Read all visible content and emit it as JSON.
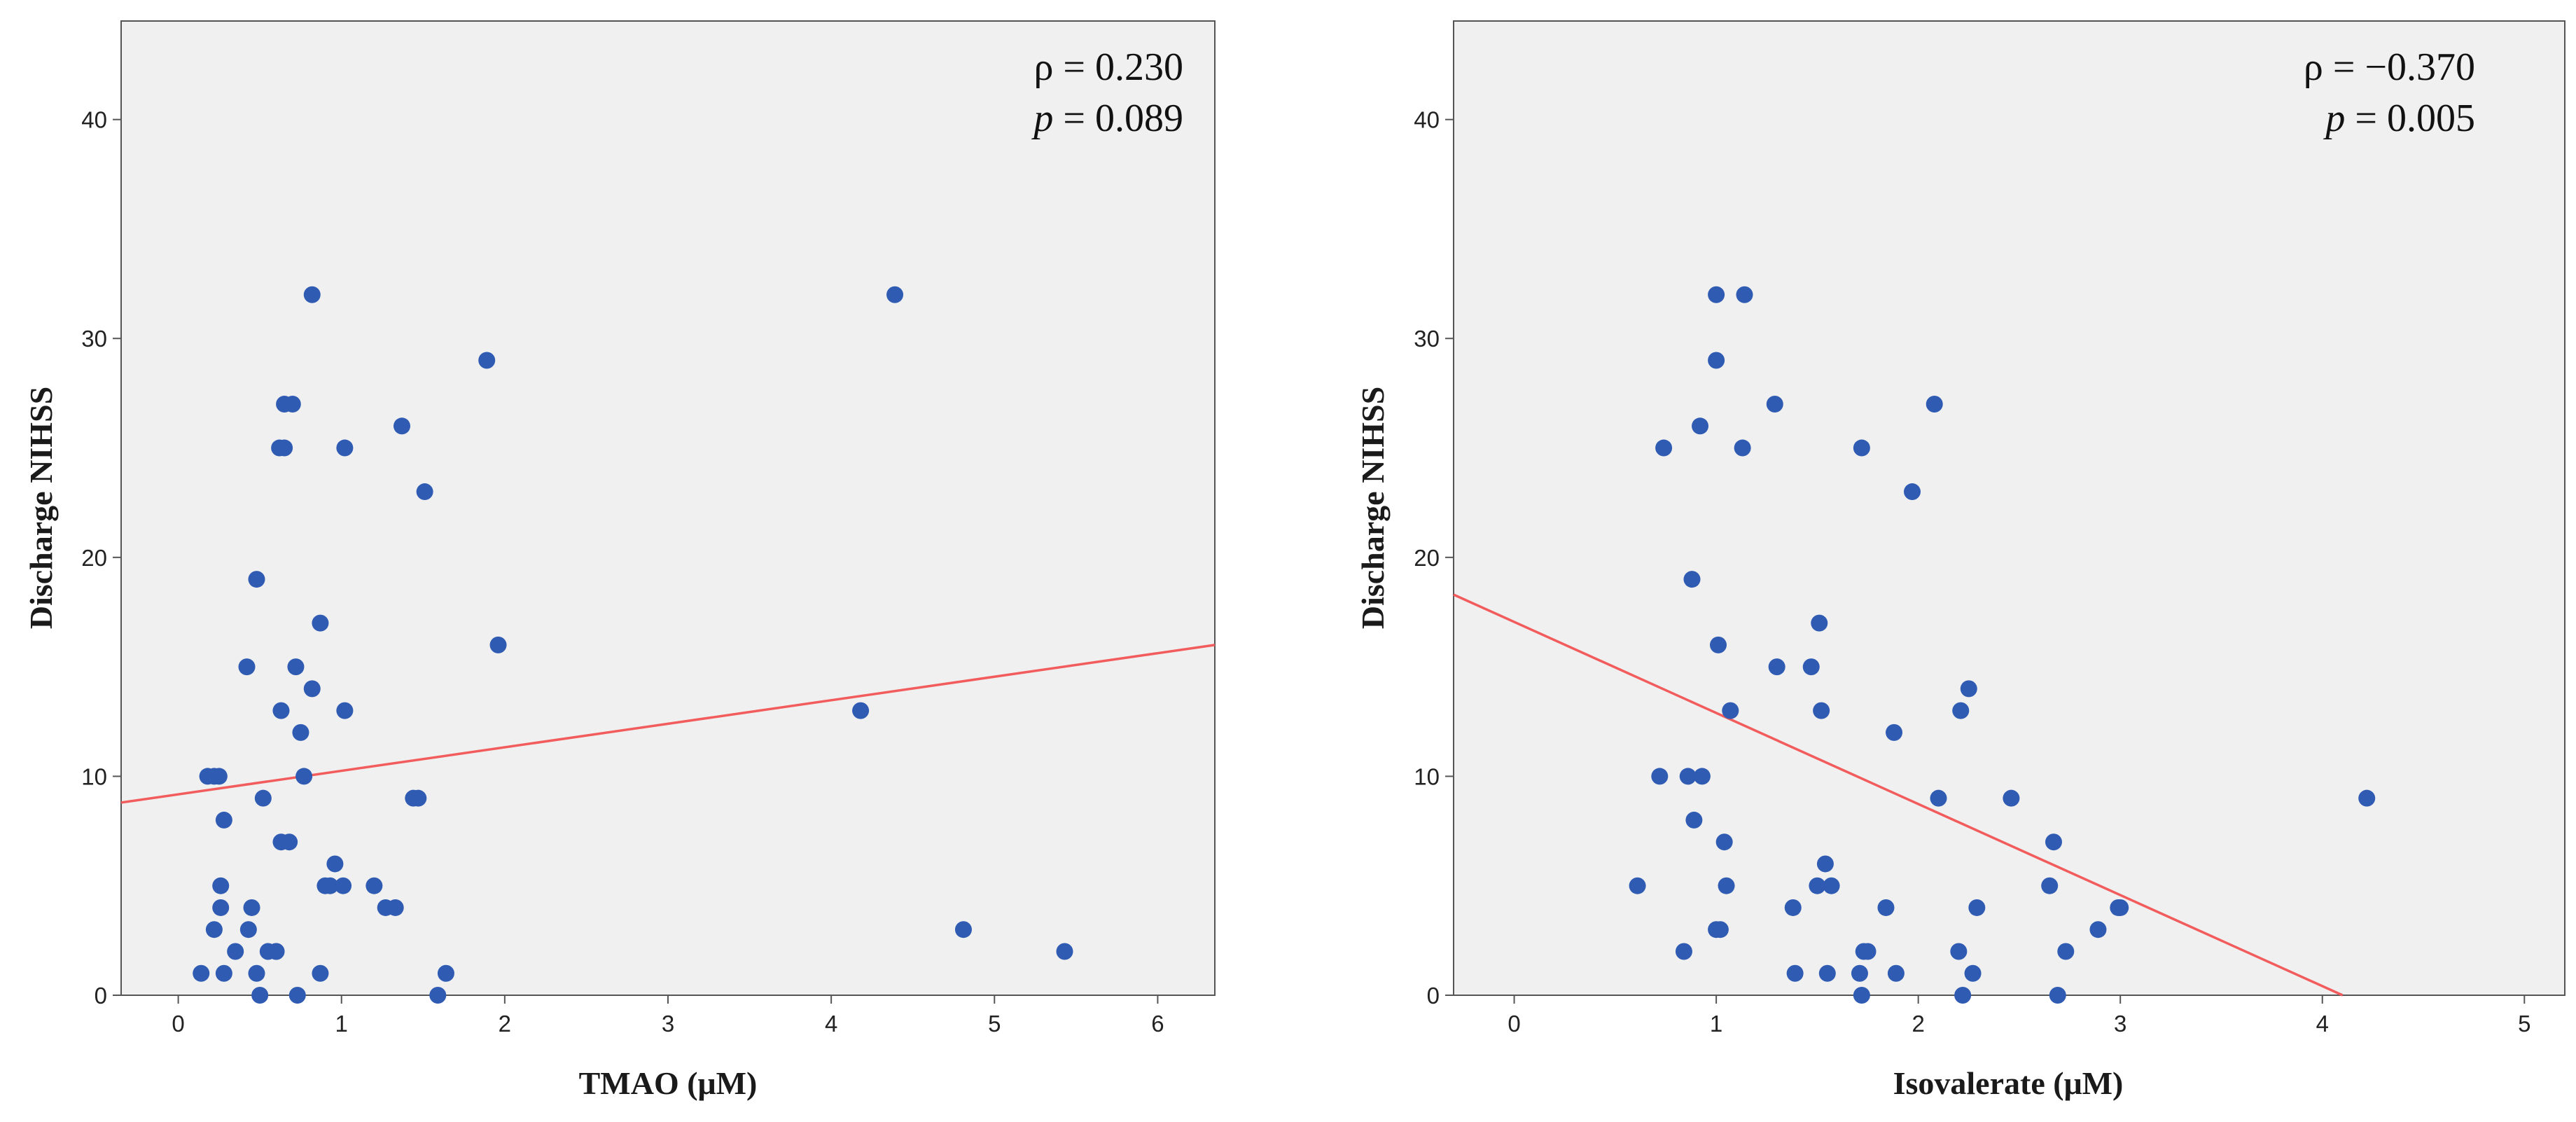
{
  "chart_data": [
    {
      "type": "scatter",
      "xlabel": "TMAO (μM)",
      "ylabel": "Discharge NIHSS",
      "xlim": [
        -0.35,
        6.35
      ],
      "ylim": [
        0,
        44.5
      ],
      "xticks": [
        0,
        1,
        2,
        3,
        4,
        5,
        6
      ],
      "yticks": [
        0,
        10,
        20,
        30,
        40
      ],
      "annotations": {
        "rho_symbol": "ρ",
        "rho_value": "= 0.230",
        "p_symbol": "p",
        "p_value": "= 0.089"
      },
      "fit_line": {
        "x": [
          -0.35,
          6.35
        ],
        "y": [
          8.8,
          16.0
        ]
      },
      "series": [
        {
          "name": "points",
          "x": [
            0.14,
            0.18,
            0.22,
            0.22,
            0.25,
            0.26,
            0.26,
            0.28,
            0.28,
            0.35,
            0.42,
            0.43,
            0.45,
            0.48,
            0.48,
            0.5,
            0.52,
            0.55,
            0.6,
            0.6,
            0.62,
            0.63,
            0.63,
            0.65,
            0.65,
            0.68,
            0.7,
            0.72,
            0.73,
            0.75,
            0.77,
            0.82,
            0.82,
            0.87,
            0.87,
            0.9,
            0.93,
            0.96,
            1.01,
            1.02,
            1.02,
            1.2,
            1.27,
            1.33,
            1.37,
            1.44,
            1.47,
            1.51,
            1.59,
            1.64,
            1.89,
            1.96,
            4.18,
            4.39,
            4.81,
            5.43
          ],
          "y": [
            1,
            10,
            10,
            3,
            10,
            5,
            4,
            1,
            8,
            2,
            15,
            3,
            4,
            19,
            1,
            0,
            9,
            2,
            2,
            2,
            25,
            13,
            7,
            25,
            27,
            7,
            27,
            15,
            0,
            12,
            10,
            14,
            32,
            17,
            1,
            5,
            5,
            6,
            5,
            25,
            13,
            5,
            4,
            4,
            26,
            9,
            9,
            23,
            0,
            1,
            29,
            16,
            13,
            32,
            3,
            2
          ]
        }
      ]
    },
    {
      "type": "scatter",
      "xlabel": "Isovalerate (μM)",
      "ylabel": "Discharge NIHSS",
      "xlim": [
        -0.3,
        5.2
      ],
      "ylim": [
        0,
        44.5
      ],
      "xticks": [
        0,
        1,
        2,
        3,
        4,
        5
      ],
      "yticks": [
        0,
        10,
        20,
        30,
        40
      ],
      "annotations": {
        "rho_symbol": "ρ",
        "rho_value": "= −0.370",
        "p_symbol": "p",
        "p_value": "= 0.005"
      },
      "fit_line": {
        "x": [
          -0.3,
          4.1
        ],
        "y": [
          18.3,
          0
        ]
      },
      "series": [
        {
          "name": "points",
          "x": [
            0.61,
            0.72,
            0.74,
            0.84,
            0.86,
            0.88,
            0.89,
            0.92,
            0.93,
            1.0,
            1.0,
            1.0,
            1.01,
            1.02,
            1.04,
            1.05,
            1.07,
            1.13,
            1.14,
            1.29,
            1.3,
            1.38,
            1.39,
            1.47,
            1.5,
            1.51,
            1.52,
            1.54,
            1.55,
            1.57,
            1.71,
            1.72,
            1.72,
            1.73,
            1.75,
            1.84,
            1.88,
            1.89,
            1.97,
            2.08,
            2.1,
            2.2,
            2.21,
            2.22,
            2.25,
            2.27,
            2.29,
            2.46,
            2.65,
            2.67,
            2.69,
            2.73,
            2.89,
            2.99,
            3.0,
            4.22
          ],
          "y": [
            5,
            10,
            25,
            2,
            10,
            19,
            8,
            26,
            10,
            32,
            29,
            3,
            16,
            3,
            7,
            5,
            13,
            25,
            32,
            27,
            15,
            4,
            1,
            15,
            5,
            17,
            13,
            6,
            1,
            5,
            1,
            25,
            0,
            2,
            2,
            4,
            12,
            1,
            23,
            27,
            9,
            2,
            13,
            0,
            14,
            1,
            4,
            9,
            5,
            7,
            0,
            2,
            3,
            4,
            4,
            9
          ]
        }
      ]
    }
  ]
}
